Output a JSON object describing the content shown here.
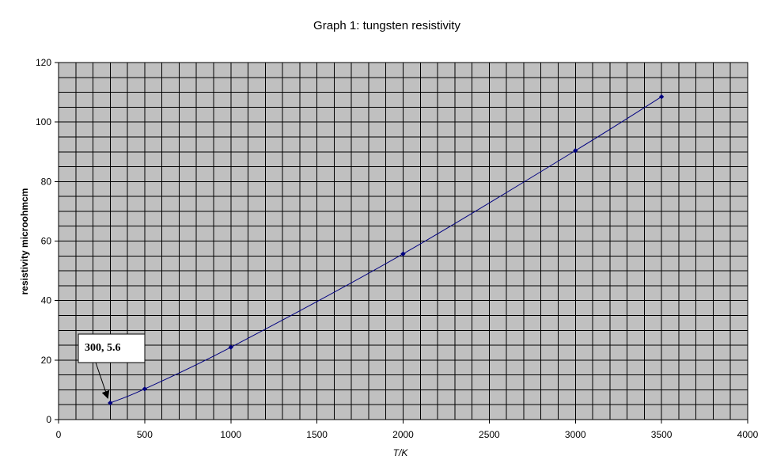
{
  "chart_data": {
    "type": "line",
    "title": "Graph 1: tungsten resistivity",
    "xlabel": "T/K",
    "ylabel": "resistivity microohmcm",
    "xlim": [
      0,
      4000
    ],
    "ylim": [
      0,
      120
    ],
    "x_ticks": [
      "0",
      "500",
      "1000",
      "1500",
      "2000",
      "2500",
      "3000",
      "3500",
      "4000"
    ],
    "y_ticks": [
      "0",
      "20",
      "40",
      "60",
      "80",
      "100",
      "120"
    ],
    "grid": true,
    "plot_background": "#c0c0c0",
    "series": [
      {
        "color": "#000080",
        "x": [
          300,
          500,
          1000,
          2000,
          3000,
          3500
        ],
        "y": [
          5.6,
          10.3,
          24.3,
          55.7,
          90.4,
          108.5
        ]
      }
    ],
    "annotations": [
      {
        "text": "300, 5.6",
        "x": 300,
        "y": 5.6
      }
    ]
  }
}
